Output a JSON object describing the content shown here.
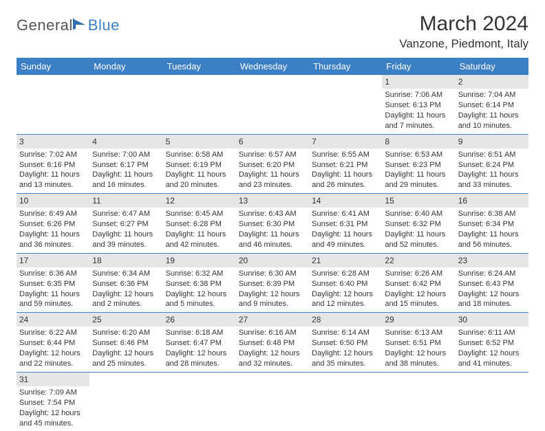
{
  "brand": {
    "part1": "General",
    "part2": "Blue"
  },
  "title": "March 2024",
  "location": "Vanzone, Piedmont, Italy",
  "day_headers": [
    "Sunday",
    "Monday",
    "Tuesday",
    "Wednesday",
    "Thursday",
    "Friday",
    "Saturday"
  ],
  "colors": {
    "header_bg": "#3b7fc4",
    "header_text": "#ffffff",
    "daynum_bg": "#e6e6e6",
    "border": "#3b7fc4",
    "text": "#333333"
  },
  "weeks": [
    [
      {
        "num": "",
        "sunrise": "",
        "sunset": "",
        "daylight": ""
      },
      {
        "num": "",
        "sunrise": "",
        "sunset": "",
        "daylight": ""
      },
      {
        "num": "",
        "sunrise": "",
        "sunset": "",
        "daylight": ""
      },
      {
        "num": "",
        "sunrise": "",
        "sunset": "",
        "daylight": ""
      },
      {
        "num": "",
        "sunrise": "",
        "sunset": "",
        "daylight": ""
      },
      {
        "num": "1",
        "sunrise": "Sunrise: 7:06 AM",
        "sunset": "Sunset: 6:13 PM",
        "daylight": "Daylight: 11 hours and 7 minutes."
      },
      {
        "num": "2",
        "sunrise": "Sunrise: 7:04 AM",
        "sunset": "Sunset: 6:14 PM",
        "daylight": "Daylight: 11 hours and 10 minutes."
      }
    ],
    [
      {
        "num": "3",
        "sunrise": "Sunrise: 7:02 AM",
        "sunset": "Sunset: 6:16 PM",
        "daylight": "Daylight: 11 hours and 13 minutes."
      },
      {
        "num": "4",
        "sunrise": "Sunrise: 7:00 AM",
        "sunset": "Sunset: 6:17 PM",
        "daylight": "Daylight: 11 hours and 16 minutes."
      },
      {
        "num": "5",
        "sunrise": "Sunrise: 6:58 AM",
        "sunset": "Sunset: 6:19 PM",
        "daylight": "Daylight: 11 hours and 20 minutes."
      },
      {
        "num": "6",
        "sunrise": "Sunrise: 6:57 AM",
        "sunset": "Sunset: 6:20 PM",
        "daylight": "Daylight: 11 hours and 23 minutes."
      },
      {
        "num": "7",
        "sunrise": "Sunrise: 6:55 AM",
        "sunset": "Sunset: 6:21 PM",
        "daylight": "Daylight: 11 hours and 26 minutes."
      },
      {
        "num": "8",
        "sunrise": "Sunrise: 6:53 AM",
        "sunset": "Sunset: 6:23 PM",
        "daylight": "Daylight: 11 hours and 29 minutes."
      },
      {
        "num": "9",
        "sunrise": "Sunrise: 6:51 AM",
        "sunset": "Sunset: 6:24 PM",
        "daylight": "Daylight: 11 hours and 33 minutes."
      }
    ],
    [
      {
        "num": "10",
        "sunrise": "Sunrise: 6:49 AM",
        "sunset": "Sunset: 6:26 PM",
        "daylight": "Daylight: 11 hours and 36 minutes."
      },
      {
        "num": "11",
        "sunrise": "Sunrise: 6:47 AM",
        "sunset": "Sunset: 6:27 PM",
        "daylight": "Daylight: 11 hours and 39 minutes."
      },
      {
        "num": "12",
        "sunrise": "Sunrise: 6:45 AM",
        "sunset": "Sunset: 6:28 PM",
        "daylight": "Daylight: 11 hours and 42 minutes."
      },
      {
        "num": "13",
        "sunrise": "Sunrise: 6:43 AM",
        "sunset": "Sunset: 6:30 PM",
        "daylight": "Daylight: 11 hours and 46 minutes."
      },
      {
        "num": "14",
        "sunrise": "Sunrise: 6:41 AM",
        "sunset": "Sunset: 6:31 PM",
        "daylight": "Daylight: 11 hours and 49 minutes."
      },
      {
        "num": "15",
        "sunrise": "Sunrise: 6:40 AM",
        "sunset": "Sunset: 6:32 PM",
        "daylight": "Daylight: 11 hours and 52 minutes."
      },
      {
        "num": "16",
        "sunrise": "Sunrise: 6:38 AM",
        "sunset": "Sunset: 6:34 PM",
        "daylight": "Daylight: 11 hours and 56 minutes."
      }
    ],
    [
      {
        "num": "17",
        "sunrise": "Sunrise: 6:36 AM",
        "sunset": "Sunset: 6:35 PM",
        "daylight": "Daylight: 11 hours and 59 minutes."
      },
      {
        "num": "18",
        "sunrise": "Sunrise: 6:34 AM",
        "sunset": "Sunset: 6:36 PM",
        "daylight": "Daylight: 12 hours and 2 minutes."
      },
      {
        "num": "19",
        "sunrise": "Sunrise: 6:32 AM",
        "sunset": "Sunset: 6:38 PM",
        "daylight": "Daylight: 12 hours and 5 minutes."
      },
      {
        "num": "20",
        "sunrise": "Sunrise: 6:30 AM",
        "sunset": "Sunset: 6:39 PM",
        "daylight": "Daylight: 12 hours and 9 minutes."
      },
      {
        "num": "21",
        "sunrise": "Sunrise: 6:28 AM",
        "sunset": "Sunset: 6:40 PM",
        "daylight": "Daylight: 12 hours and 12 minutes."
      },
      {
        "num": "22",
        "sunrise": "Sunrise: 6:26 AM",
        "sunset": "Sunset: 6:42 PM",
        "daylight": "Daylight: 12 hours and 15 minutes."
      },
      {
        "num": "23",
        "sunrise": "Sunrise: 6:24 AM",
        "sunset": "Sunset: 6:43 PM",
        "daylight": "Daylight: 12 hours and 18 minutes."
      }
    ],
    [
      {
        "num": "24",
        "sunrise": "Sunrise: 6:22 AM",
        "sunset": "Sunset: 6:44 PM",
        "daylight": "Daylight: 12 hours and 22 minutes."
      },
      {
        "num": "25",
        "sunrise": "Sunrise: 6:20 AM",
        "sunset": "Sunset: 6:46 PM",
        "daylight": "Daylight: 12 hours and 25 minutes."
      },
      {
        "num": "26",
        "sunrise": "Sunrise: 6:18 AM",
        "sunset": "Sunset: 6:47 PM",
        "daylight": "Daylight: 12 hours and 28 minutes."
      },
      {
        "num": "27",
        "sunrise": "Sunrise: 6:16 AM",
        "sunset": "Sunset: 6:48 PM",
        "daylight": "Daylight: 12 hours and 32 minutes."
      },
      {
        "num": "28",
        "sunrise": "Sunrise: 6:14 AM",
        "sunset": "Sunset: 6:50 PM",
        "daylight": "Daylight: 12 hours and 35 minutes."
      },
      {
        "num": "29",
        "sunrise": "Sunrise: 6:13 AM",
        "sunset": "Sunset: 6:51 PM",
        "daylight": "Daylight: 12 hours and 38 minutes."
      },
      {
        "num": "30",
        "sunrise": "Sunrise: 6:11 AM",
        "sunset": "Sunset: 6:52 PM",
        "daylight": "Daylight: 12 hours and 41 minutes."
      }
    ],
    [
      {
        "num": "31",
        "sunrise": "Sunrise: 7:09 AM",
        "sunset": "Sunset: 7:54 PM",
        "daylight": "Daylight: 12 hours and 45 minutes."
      },
      {
        "num": "",
        "sunrise": "",
        "sunset": "",
        "daylight": ""
      },
      {
        "num": "",
        "sunrise": "",
        "sunset": "",
        "daylight": ""
      },
      {
        "num": "",
        "sunrise": "",
        "sunset": "",
        "daylight": ""
      },
      {
        "num": "",
        "sunrise": "",
        "sunset": "",
        "daylight": ""
      },
      {
        "num": "",
        "sunrise": "",
        "sunset": "",
        "daylight": ""
      },
      {
        "num": "",
        "sunrise": "",
        "sunset": "",
        "daylight": ""
      }
    ]
  ]
}
